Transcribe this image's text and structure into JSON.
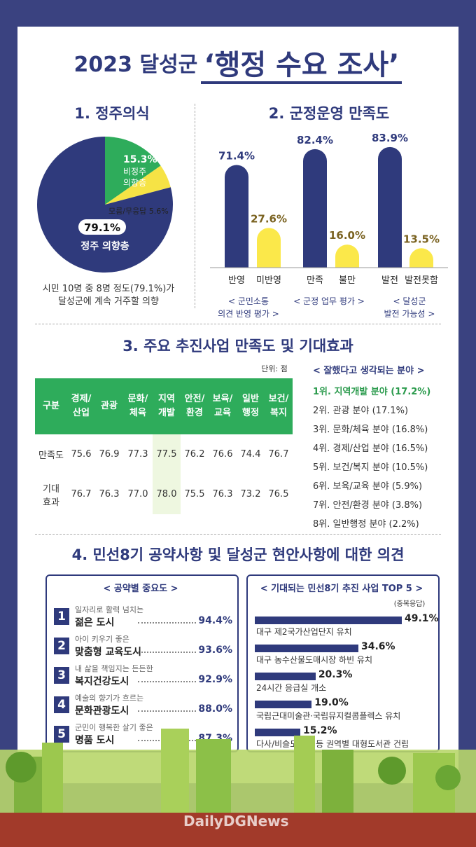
{
  "title": {
    "year": "2023 달성군",
    "main": "‘행정 수요 조사’"
  },
  "s1": {
    "title": "1. 정주의식",
    "caption": "시민 10명 중 8명 정도(79.1%)가\n달성군에 계속 거주할 의향",
    "labels": {
      "nonres_pct": "15.3%",
      "nonres_l1": "비정주",
      "nonres_l2": "의향층",
      "unknown": "모름/무응답 5.6%",
      "res_pct": "79.1%",
      "res_label": "정주 의향층"
    }
  },
  "s2": {
    "title": "2. 군정운영 만족도",
    "groups": [
      "< 군민소통\n의견 반영 평가 >",
      "< 군정 업무 평가 >",
      "< 달성군\n발전 가능성 >"
    ]
  },
  "s3": {
    "title": "3. 주요 추진사업 만족도 및 기대효과",
    "unit": "단위: 점",
    "header": [
      "구분",
      "경제/\n산업",
      "관광",
      "문화/\n체육",
      "지역\n개발",
      "안전/\n환경",
      "보육/\n교육",
      "일반\n행정",
      "보건/\n복지"
    ],
    "rows": [
      {
        "label": "만족도",
        "values": [
          "75.6",
          "76.9",
          "77.3",
          "77.5",
          "76.2",
          "76.6",
          "74.4",
          "76.7"
        ]
      },
      {
        "label": "기대\n효과",
        "values": [
          "76.7",
          "76.3",
          "77.0",
          "78.0",
          "75.5",
          "76.3",
          "73.2",
          "76.5"
        ]
      }
    ],
    "rank_title": "< 잘했다고 생각되는 분야 >",
    "ranks": [
      "1위. 지역개발 분야 (17.2%)",
      "2위. 관광 분야 (17.1%)",
      "3위. 문화/체육 분야 (16.8%)",
      "4위. 경제/산업 분야 (16.5%)",
      "5위. 보건/복지 분야 (10.5%)",
      "6위. 보육/교육 분야 (5.9%)",
      "7위. 안전/환경 분야 (3.8%)",
      "8위. 일반행정 분야 (2.2%)"
    ]
  },
  "s4": {
    "title": "4. 민선8기 공약사항 및 달성군 현안사항에 대한 의견",
    "left_title": "< 공약별 중요도 >",
    "pledges": [
      {
        "n": "1",
        "sub": "일자리로 활력 넘치는",
        "main": "젊은 도시",
        "pct": "94.4%"
      },
      {
        "n": "2",
        "sub": "아이 키우기 좋은",
        "main": "맞춤형 교육도시",
        "pct": "93.6%"
      },
      {
        "n": "3",
        "sub": "내 삶을 책임지는 든든한",
        "main": "복지건강도시",
        "pct": "92.9%"
      },
      {
        "n": "4",
        "sub": "예술의 향기가 흐르는",
        "main": "문화관광도시",
        "pct": "88.0%"
      },
      {
        "n": "5",
        "sub": "군민이 행복한 살기 좋은",
        "main": "명품 도시",
        "pct": "87.3%"
      }
    ],
    "right_title": "< 기대되는 민선8기 추진 사업 TOP 5 >",
    "right_note": "(중복응답)",
    "top5": [
      {
        "label": "대구 제2국가산업단지 유치",
        "pct": "49.1%"
      },
      {
        "label": "대구 농수산물도매시장 하빈 유치",
        "pct": "34.6%"
      },
      {
        "label": "24시간 응급실 개소",
        "pct": "20.3%"
      },
      {
        "label": "국립근대미술관·국립뮤지컬콤플렉스 유치",
        "pct": "19.0%"
      },
      {
        "label": "다사/비슬도서관 등 권역별 대형도서관 건립",
        "pct": "15.2%"
      }
    ]
  },
  "watermark": "DailyDGNews",
  "colors": {
    "navy": "#2f3a7c",
    "green": "#2eac5b",
    "yellow": "#f6e345",
    "bar_yellow": "#fbe84a",
    "text_gold": "#7a6220"
  },
  "chart_data": [
    {
      "type": "pie",
      "title": "1. 정주의식",
      "slices": [
        {
          "label": "정주 의향층",
          "value": 79.1
        },
        {
          "label": "비정주 의향층",
          "value": 15.3
        },
        {
          "label": "모름/무응답",
          "value": 5.6
        }
      ]
    },
    {
      "type": "bar",
      "title": "2. 군정운영 만족도",
      "categories": [
        "반영",
        "미반영",
        "만족",
        "불만",
        "발전",
        "발전못함"
      ],
      "values": [
        71.4,
        27.6,
        82.4,
        16.0,
        83.9,
        13.5
      ],
      "ylim": [
        0,
        100
      ]
    },
    {
      "type": "table",
      "title": "3. 주요 추진사업 만족도 및 기대효과",
      "columns": [
        "경제/산업",
        "관광",
        "문화/체육",
        "지역개발",
        "안전/환경",
        "보육/교육",
        "일반행정",
        "보건/복지"
      ],
      "rows": {
        "만족도": [
          75.6,
          76.9,
          77.3,
          77.5,
          76.2,
          76.6,
          74.4,
          76.7
        ],
        "기대효과": [
          76.7,
          76.3,
          77.0,
          78.0,
          75.5,
          76.3,
          73.2,
          76.5
        ]
      }
    },
    {
      "type": "bar",
      "title": "공약별 중요도",
      "categories": [
        "젊은 도시",
        "맞춤형 교육도시",
        "복지건강도시",
        "문화관광도시",
        "명품 도시"
      ],
      "values": [
        94.4,
        93.6,
        92.9,
        88.0,
        87.3
      ]
    },
    {
      "type": "bar",
      "title": "기대되는 민선8기 추진 사업 TOP 5",
      "categories": [
        "대구 제2국가산업단지 유치",
        "대구 농수산물도매시장 하빈 유치",
        "24시간 응급실 개소",
        "국립근대미술관·국립뮤지컬콤플렉스 유치",
        "다사/비슬도서관 등 권역별 대형도서관 건립"
      ],
      "values": [
        49.1,
        34.6,
        20.3,
        19.0,
        15.2
      ]
    }
  ]
}
